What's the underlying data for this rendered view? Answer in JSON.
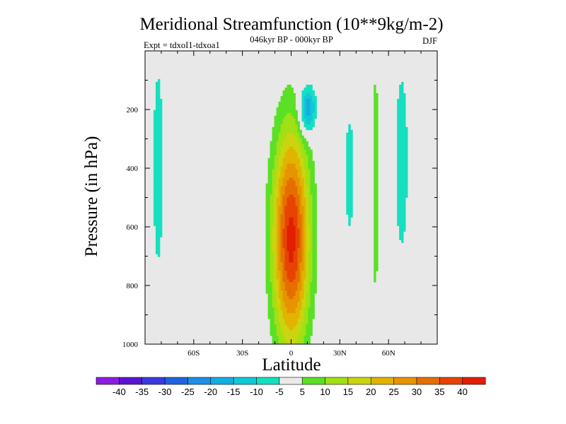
{
  "chart_data": {
    "type": "heatmap",
    "title": "Meridional Streamfunction (10**9kg/m-2)",
    "subtitle_center": "046kyr BP - 000kyr BP",
    "subtitle_left": "Expt = tdxoI1-tdxoa1",
    "subtitle_right": "DJF",
    "xlabel": "Latitude",
    "ylabel": "Pressure (in hPa)",
    "xlim": [
      -90,
      90
    ],
    "ylim": [
      1000,
      0
    ],
    "x_ticks": [
      {
        "value": -60,
        "label": "60S"
      },
      {
        "value": -30,
        "label": "30S"
      },
      {
        "value": 0,
        "label": "0"
      },
      {
        "value": 30,
        "label": "30N"
      },
      {
        "value": 60,
        "label": "60N"
      }
    ],
    "y_ticks": [
      {
        "value": 200,
        "label": "200"
      },
      {
        "value": 400,
        "label": "400"
      },
      {
        "value": 600,
        "label": "600"
      },
      {
        "value": 800,
        "label": "800"
      },
      {
        "value": 1000,
        "label": "1000"
      }
    ],
    "levels": [
      -40,
      -35,
      -30,
      -25,
      -20,
      -15,
      -10,
      -5,
      5,
      10,
      15,
      20,
      25,
      30,
      35,
      40
    ],
    "level_labels": [
      "-40",
      "-35",
      "-30",
      "-25",
      "-20",
      "-15",
      "-10",
      "-5",
      "5",
      "10",
      "15",
      "20",
      "25",
      "30",
      "35",
      "40"
    ],
    "colors": [
      "#8a1ee0",
      "#5a14d0",
      "#3a3ae0",
      "#1e64e0",
      "#1e8ee6",
      "#14aee0",
      "#10c8d8",
      "#14e0c0",
      "#eaeaea",
      "#5ae025",
      "#a0e014",
      "#ccd410",
      "#e0b400",
      "#e69400",
      "#e66e00",
      "#e64400",
      "#e01e00"
    ],
    "features": [
      {
        "name": "tropical-positive-cell",
        "center_lat": 0,
        "center_p": 640,
        "peak": 42,
        "lat_width": 11,
        "p_width": 360
      },
      {
        "name": "upper-negative-cell",
        "center_lat": 10,
        "center_p": 200,
        "peak": -22,
        "lat_width": 5,
        "p_width": 80
      },
      {
        "name": "southern-negative-strip",
        "center_lat": -82,
        "center_p": 400,
        "peak": -8,
        "lat_width": 4,
        "p_width": 450
      },
      {
        "name": "northern-positive-strip",
        "center_lat": 52,
        "center_p": 450,
        "peak": 10,
        "lat_width": 2,
        "p_width": 420
      },
      {
        "name": "northern-negative-strip",
        "center_lat": 68,
        "center_p": 380,
        "peak": -8,
        "lat_width": 5,
        "p_width": 400
      },
      {
        "name": "mid-northern-negative-strip",
        "center_lat": 36,
        "center_p": 420,
        "peak": -7,
        "lat_width": 4,
        "p_width": 300
      }
    ]
  }
}
